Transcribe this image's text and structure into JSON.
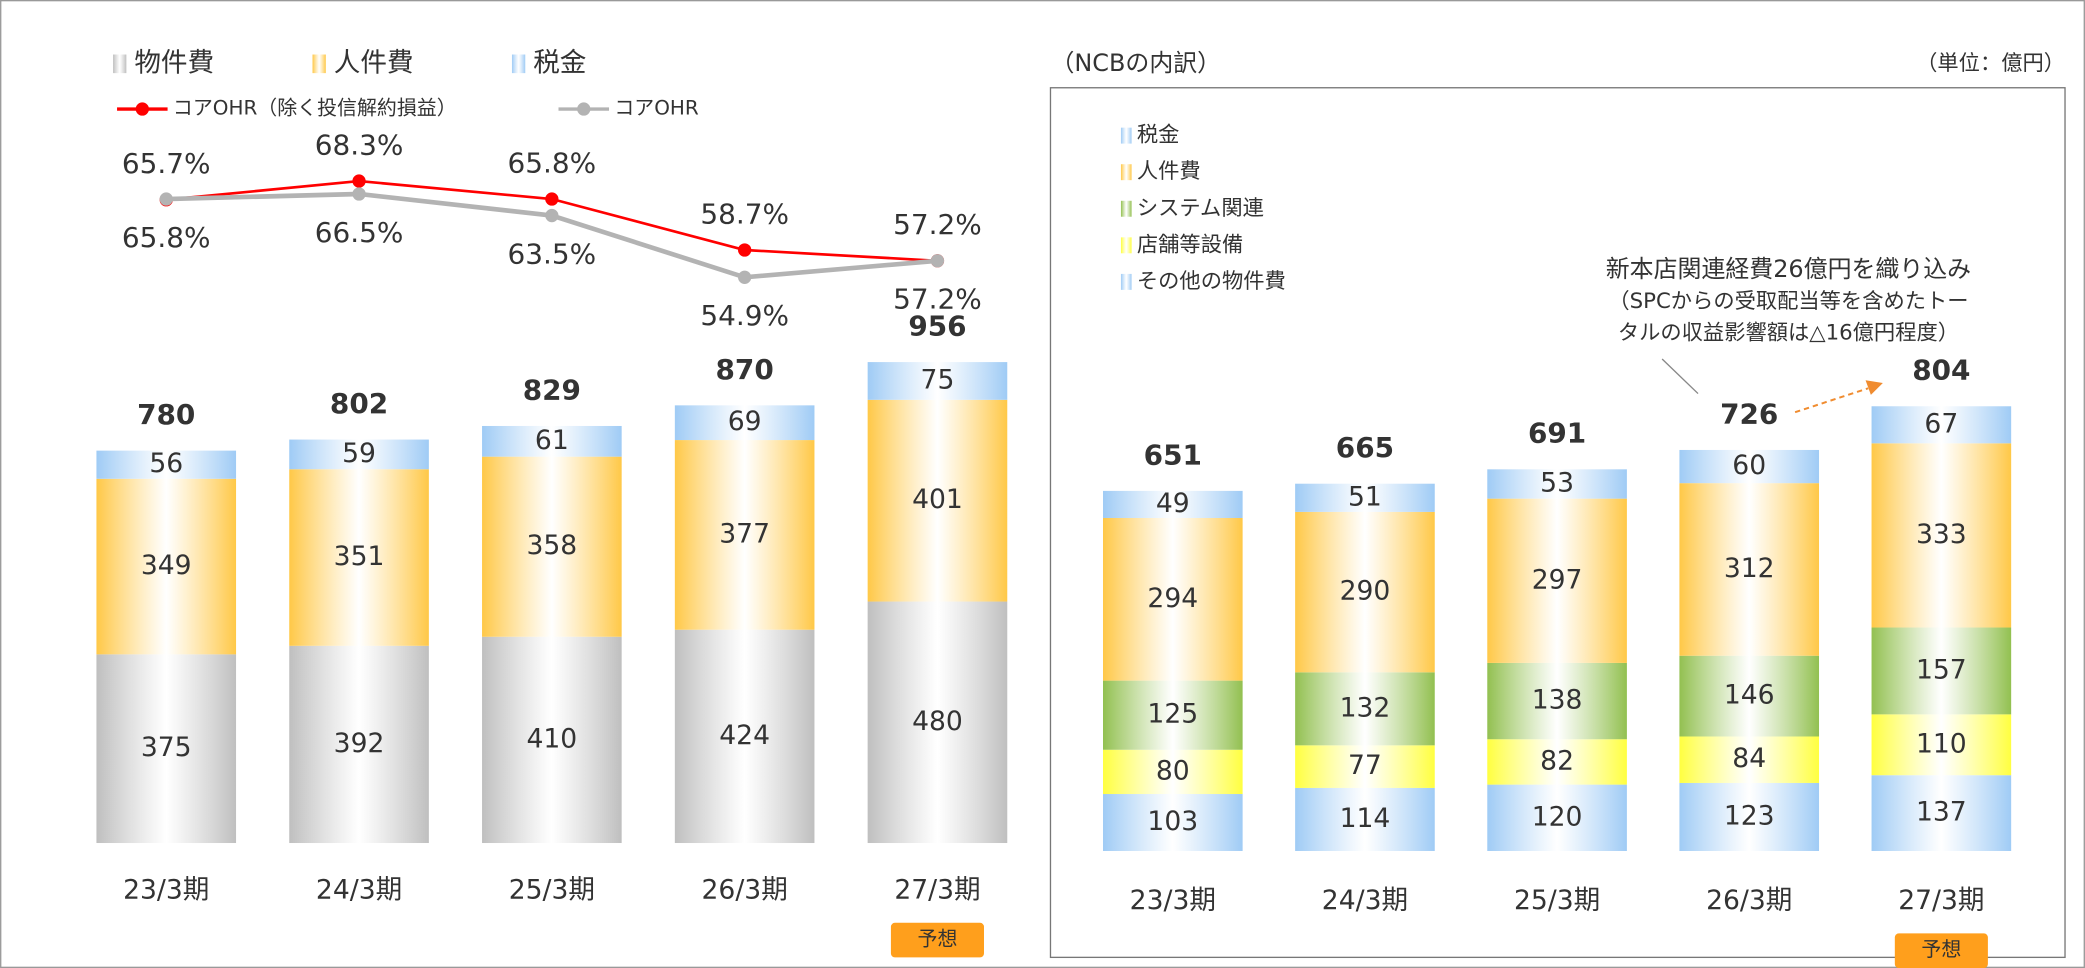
{
  "chart_data": [
    {
      "type": "bar",
      "stacked": true,
      "categories": [
        "23/3期",
        "24/3期",
        "25/3期",
        "26/3期",
        "27/3期"
      ],
      "series": [
        {
          "name": "物件費",
          "color": "#bfbfbf",
          "values": [
            375,
            392,
            410,
            424,
            480
          ]
        },
        {
          "name": "人件費",
          "color": "#ffc847",
          "values": [
            349,
            351,
            358,
            377,
            401
          ]
        },
        {
          "name": "税金",
          "color": "#9fcbf5",
          "values": [
            56,
            59,
            61,
            69,
            75
          ]
        },
        {
          "name": "コアOHR（除く投信解約損益）",
          "type": "line",
          "axis": "y2",
          "color": "#ff0000",
          "values": [
            65.7,
            68.3,
            65.8,
            58.7,
            57.2
          ],
          "value_labels": [
            "65.7%",
            "68.3%",
            "65.8%",
            "58.7%",
            "57.2%"
          ]
        },
        {
          "name": "コアOHR",
          "type": "line",
          "axis": "y2",
          "color": "#b3b3b3",
          "values": [
            65.8,
            66.5,
            63.5,
            54.9,
            57.2
          ],
          "value_labels": [
            "65.8%",
            "66.5%",
            "63.5%",
            "54.9%",
            "57.2%"
          ]
        }
      ],
      "totals": [
        780,
        802,
        829,
        870,
        956
      ],
      "ylim": [
        0,
        1200
      ],
      "y2lim": [
        45,
        75
      ],
      "badge": "予想"
    },
    {
      "type": "bar",
      "stacked": true,
      "title": "（NCBの内訳）",
      "unit": "（単位：億円）",
      "categories": [
        "23/3期",
        "24/3期",
        "25/3期",
        "26/3期",
        "27/3期"
      ],
      "series": [
        {
          "name": "その他の物件費",
          "color": "#9fcbf5",
          "values": [
            103,
            114,
            120,
            123,
            137
          ]
        },
        {
          "name": "店舗等設備",
          "color": "#ffff40",
          "values": [
            80,
            77,
            82,
            84,
            110
          ]
        },
        {
          "name": "システム関連",
          "color": "#92c050",
          "values": [
            125,
            132,
            138,
            146,
            157
          ]
        },
        {
          "name": "人件費",
          "color": "#ffc847",
          "values": [
            294,
            290,
            297,
            312,
            333
          ]
        },
        {
          "name": "税金",
          "color": "#9fcbf5",
          "values": [
            49,
            51,
            53,
            60,
            67
          ]
        }
      ],
      "totals": [
        651,
        665,
        691,
        726,
        804
      ],
      "ylim": [
        0,
        1000
      ],
      "annotation": [
        "新本店関連経費26億円を織り込み",
        "（SPCからの受取配当等を含めたトー",
        "タルの収益影響額は△16億円程度）"
      ],
      "badge": "予想"
    }
  ]
}
